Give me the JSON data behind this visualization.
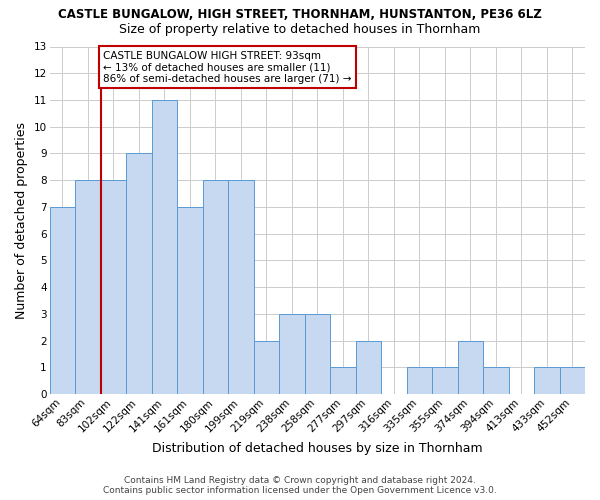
{
  "title": "CASTLE BUNGALOW, HIGH STREET, THORNHAM, HUNSTANTON, PE36 6LZ",
  "subtitle": "Size of property relative to detached houses in Thornham",
  "xlabel": "Distribution of detached houses by size in Thornham",
  "ylabel": "Number of detached properties",
  "categories": [
    "64sqm",
    "83sqm",
    "102sqm",
    "122sqm",
    "141sqm",
    "161sqm",
    "180sqm",
    "199sqm",
    "219sqm",
    "238sqm",
    "258sqm",
    "277sqm",
    "297sqm",
    "316sqm",
    "335sqm",
    "355sqm",
    "374sqm",
    "394sqm",
    "413sqm",
    "433sqm",
    "452sqm"
  ],
  "values": [
    7,
    8,
    8,
    9,
    11,
    7,
    8,
    8,
    2,
    3,
    3,
    1,
    2,
    0,
    1,
    1,
    2,
    1,
    0,
    1,
    1
  ],
  "bar_color": "#c6d9f1",
  "bar_edge_color": "#5a9ad5",
  "reference_line_color": "#c00000",
  "reference_line_x": 1.5,
  "ylim": [
    0,
    13
  ],
  "yticks": [
    0,
    1,
    2,
    3,
    4,
    5,
    6,
    7,
    8,
    9,
    10,
    11,
    12,
    13
  ],
  "annotation_text": "CASTLE BUNGALOW HIGH STREET: 93sqm\n← 13% of detached houses are smaller (11)\n86% of semi-detached houses are larger (71) →",
  "annotation_box_color": "#ffffff",
  "annotation_box_edge": "#c00000",
  "footer_line1": "Contains HM Land Registry data © Crown copyright and database right 2024.",
  "footer_line2": "Contains public sector information licensed under the Open Government Licence v3.0.",
  "background_color": "#ffffff",
  "grid_color": "#cccccc",
  "title_fontsize": 8.5,
  "subtitle_fontsize": 9,
  "ylabel_fontsize": 9,
  "xlabel_fontsize": 9,
  "tick_fontsize": 7.5,
  "annotation_fontsize": 7.5,
  "footer_fontsize": 6.5
}
